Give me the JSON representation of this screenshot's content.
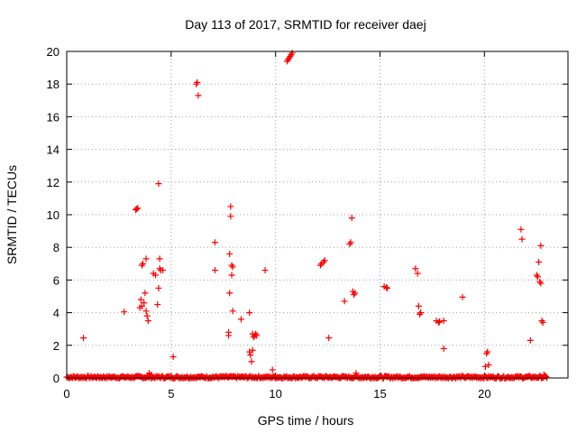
{
  "chart_data": {
    "type": "scatter",
    "title": "Day 113 of 2017, SRMTID for receiver daej",
    "xlabel": "GPS time / hours",
    "ylabel": "SRMTID / TECUs",
    "xlim": [
      0,
      24
    ],
    "ylim": [
      0,
      20
    ],
    "xticks": [
      0,
      5,
      10,
      15,
      20
    ],
    "yticks": [
      0,
      2,
      4,
      6,
      8,
      10,
      12,
      14,
      16,
      18,
      20
    ],
    "grid": true,
    "marker": "plus",
    "marker_color": "#ff0000",
    "baseline": {
      "x_start": 0.0,
      "x_end": 23.0,
      "y": 0.05
    },
    "points": [
      [
        0.8,
        2.45
      ],
      [
        2.75,
        4.05
      ],
      [
        3.3,
        10.3
      ],
      [
        3.35,
        10.35
      ],
      [
        3.4,
        10.4
      ],
      [
        3.5,
        4.3
      ],
      [
        3.55,
        4.8
      ],
      [
        3.6,
        4.4
      ],
      [
        3.6,
        6.9
      ],
      [
        3.65,
        7.0
      ],
      [
        3.7,
        4.6
      ],
      [
        3.75,
        5.2
      ],
      [
        3.8,
        7.3
      ],
      [
        3.8,
        4.1
      ],
      [
        3.85,
        3.8
      ],
      [
        3.9,
        3.5
      ],
      [
        3.95,
        0.3
      ],
      [
        4.05,
        0.2
      ],
      [
        4.15,
        6.4
      ],
      [
        4.25,
        6.3
      ],
      [
        4.35,
        4.5
      ],
      [
        4.4,
        5.5
      ],
      [
        4.4,
        11.9
      ],
      [
        4.45,
        7.3
      ],
      [
        4.45,
        6.7
      ],
      [
        4.5,
        6.6
      ],
      [
        4.6,
        6.6
      ],
      [
        5.1,
        1.3
      ],
      [
        6.2,
        18.0
      ],
      [
        6.25,
        18.1
      ],
      [
        6.3,
        17.3
      ],
      [
        7.1,
        8.3
      ],
      [
        7.1,
        6.6
      ],
      [
        7.75,
        2.6
      ],
      [
        7.75,
        2.8
      ],
      [
        7.8,
        7.6
      ],
      [
        7.8,
        5.2
      ],
      [
        7.85,
        10.5
      ],
      [
        7.85,
        9.9
      ],
      [
        7.9,
        6.9
      ],
      [
        7.9,
        6.3
      ],
      [
        7.95,
        6.8
      ],
      [
        7.95,
        4.1
      ],
      [
        8.35,
        3.6
      ],
      [
        8.75,
        4.0
      ],
      [
        8.75,
        1.6
      ],
      [
        8.8,
        1.4
      ],
      [
        8.85,
        1.0
      ],
      [
        8.9,
        1.7
      ],
      [
        8.9,
        2.7
      ],
      [
        8.95,
        2.5
      ],
      [
        9.0,
        2.6
      ],
      [
        9.05,
        2.7
      ],
      [
        9.1,
        2.6
      ],
      [
        9.5,
        6.6
      ],
      [
        9.85,
        0.5
      ],
      [
        10.55,
        19.4
      ],
      [
        10.6,
        19.5
      ],
      [
        10.65,
        19.6
      ],
      [
        10.7,
        19.7
      ],
      [
        10.75,
        19.8
      ],
      [
        10.8,
        19.9
      ],
      [
        12.15,
        6.9
      ],
      [
        12.2,
        7.0
      ],
      [
        12.3,
        7.1
      ],
      [
        12.35,
        7.2
      ],
      [
        12.55,
        2.45
      ],
      [
        13.3,
        4.7
      ],
      [
        13.55,
        8.2
      ],
      [
        13.6,
        8.3
      ],
      [
        13.65,
        9.8
      ],
      [
        13.7,
        5.3
      ],
      [
        13.75,
        5.1
      ],
      [
        13.8,
        5.2
      ],
      [
        13.85,
        0.3
      ],
      [
        15.2,
        5.6
      ],
      [
        15.3,
        5.55
      ],
      [
        15.35,
        5.5
      ],
      [
        16.7,
        6.7
      ],
      [
        16.8,
        6.4
      ],
      [
        16.85,
        4.4
      ],
      [
        16.9,
        3.9
      ],
      [
        16.95,
        4.0
      ],
      [
        17.7,
        3.5
      ],
      [
        17.8,
        3.4
      ],
      [
        17.85,
        3.45
      ],
      [
        18.05,
        3.5
      ],
      [
        18.05,
        1.8
      ],
      [
        18.95,
        4.95
      ],
      [
        20.05,
        0.7
      ],
      [
        20.1,
        1.5
      ],
      [
        20.15,
        1.6
      ],
      [
        20.2,
        0.8
      ],
      [
        21.75,
        9.1
      ],
      [
        21.8,
        8.5
      ],
      [
        22.2,
        2.3
      ],
      [
        22.5,
        6.3
      ],
      [
        22.55,
        6.2
      ],
      [
        22.6,
        7.1
      ],
      [
        22.65,
        5.9
      ],
      [
        22.7,
        5.8
      ],
      [
        22.7,
        8.1
      ],
      [
        22.75,
        3.5
      ],
      [
        22.8,
        3.4
      ],
      [
        22.85,
        0.2
      ]
    ]
  }
}
